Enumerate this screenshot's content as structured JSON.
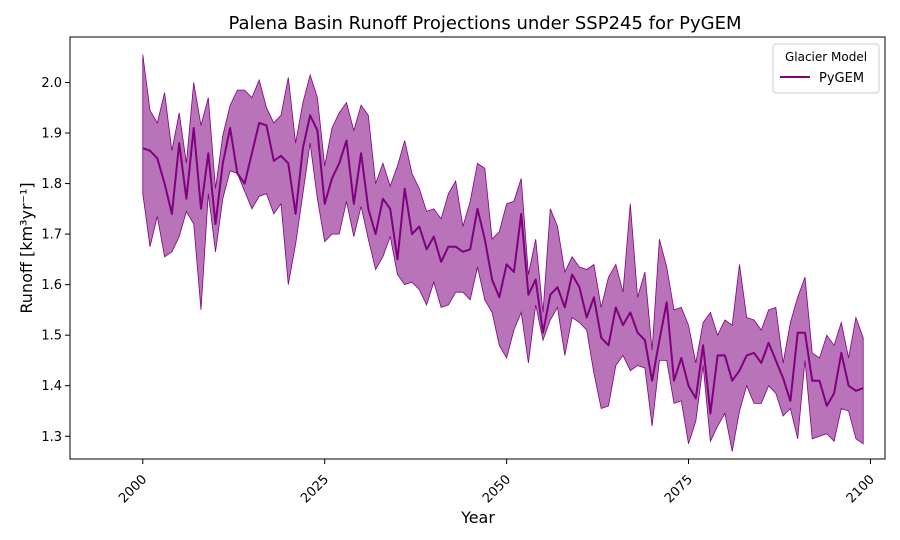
{
  "chart_data": {
    "type": "line",
    "title": "Palena Basin Runoff Projections under SSP245 for PyGEM",
    "xlabel": "Year",
    "ylabel": "Runoff [km³yr⁻¹]",
    "xlim": [
      1990,
      2102
    ],
    "ylim": [
      1.255,
      2.09
    ],
    "xticks": [
      2000,
      2025,
      2050,
      2075,
      2100
    ],
    "yticks": [
      1.3,
      1.4,
      1.5,
      1.6,
      1.7,
      1.8,
      1.9,
      2.0
    ],
    "grid": false,
    "legend": {
      "title": "Glacier Model",
      "placement": "top-right"
    },
    "series_color": "#800080",
    "x": [
      2000,
      2001,
      2002,
      2003,
      2004,
      2005,
      2006,
      2007,
      2008,
      2009,
      2010,
      2011,
      2012,
      2013,
      2014,
      2015,
      2016,
      2017,
      2018,
      2019,
      2020,
      2021,
      2022,
      2023,
      2024,
      2025,
      2026,
      2027,
      2028,
      2029,
      2030,
      2031,
      2032,
      2033,
      2034,
      2035,
      2036,
      2037,
      2038,
      2039,
      2040,
      2041,
      2042,
      2043,
      2044,
      2045,
      2046,
      2047,
      2048,
      2049,
      2050,
      2051,
      2052,
      2053,
      2054,
      2055,
      2056,
      2057,
      2058,
      2059,
      2060,
      2061,
      2062,
      2063,
      2064,
      2065,
      2066,
      2067,
      2068,
      2069,
      2070,
      2071,
      2072,
      2073,
      2074,
      2075,
      2076,
      2077,
      2078,
      2079,
      2080,
      2081,
      2082,
      2083,
      2084,
      2085,
      2086,
      2087,
      2088,
      2089,
      2090,
      2091,
      2092,
      2093,
      2094,
      2095,
      2096,
      2097,
      2098,
      2099
    ],
    "series": [
      {
        "name": "PyGEM",
        "values": [
          1.87,
          1.865,
          1.85,
          1.8,
          1.74,
          1.88,
          1.77,
          1.91,
          1.75,
          1.86,
          1.72,
          1.84,
          1.91,
          1.82,
          1.8,
          1.86,
          1.92,
          1.915,
          1.845,
          1.855,
          1.84,
          1.74,
          1.87,
          1.935,
          1.905,
          1.76,
          1.81,
          1.84,
          1.885,
          1.76,
          1.86,
          1.75,
          1.7,
          1.77,
          1.75,
          1.65,
          1.79,
          1.7,
          1.715,
          1.67,
          1.695,
          1.645,
          1.675,
          1.675,
          1.665,
          1.67,
          1.75,
          1.69,
          1.61,
          1.575,
          1.64,
          1.625,
          1.74,
          1.58,
          1.61,
          1.505,
          1.58,
          1.595,
          1.555,
          1.62,
          1.595,
          1.535,
          1.575,
          1.495,
          1.48,
          1.555,
          1.52,
          1.545,
          1.505,
          1.49,
          1.41,
          1.49,
          1.565,
          1.41,
          1.455,
          1.4,
          1.375,
          1.48,
          1.345,
          1.46,
          1.46,
          1.41,
          1.43,
          1.46,
          1.465,
          1.445,
          1.485,
          1.45,
          1.415,
          1.37,
          1.505,
          1.505,
          1.41,
          1.41,
          1.36,
          1.385,
          1.465,
          1.4,
          1.39,
          1.395
        ]
      }
    ],
    "band": {
      "upper": [
        2.055,
        1.945,
        1.92,
        1.98,
        1.865,
        1.94,
        1.84,
        2.0,
        1.915,
        1.97,
        1.79,
        1.895,
        1.955,
        1.985,
        1.985,
        1.97,
        2.005,
        1.95,
        1.92,
        1.935,
        2.01,
        1.88,
        1.96,
        2.015,
        1.97,
        1.835,
        1.91,
        1.94,
        1.96,
        1.905,
        1.955,
        1.935,
        1.8,
        1.84,
        1.795,
        1.835,
        1.885,
        1.82,
        1.79,
        1.745,
        1.75,
        1.73,
        1.78,
        1.805,
        1.715,
        1.765,
        1.84,
        1.83,
        1.69,
        1.705,
        1.76,
        1.765,
        1.81,
        1.62,
        1.69,
        1.545,
        1.75,
        1.715,
        1.625,
        1.655,
        1.635,
        1.63,
        1.64,
        1.555,
        1.615,
        1.64,
        1.585,
        1.76,
        1.575,
        1.625,
        1.47,
        1.69,
        1.635,
        1.55,
        1.555,
        1.52,
        1.445,
        1.525,
        1.545,
        1.5,
        1.53,
        1.52,
        1.64,
        1.535,
        1.53,
        1.51,
        1.55,
        1.555,
        1.445,
        1.525,
        1.575,
        1.615,
        1.465,
        1.455,
        1.5,
        1.48,
        1.525,
        1.455,
        1.535,
        1.495
      ],
      "lower": [
        1.78,
        1.675,
        1.735,
        1.655,
        1.665,
        1.695,
        1.745,
        1.72,
        1.55,
        1.78,
        1.665,
        1.77,
        1.825,
        1.82,
        1.785,
        1.75,
        1.775,
        1.78,
        1.74,
        1.76,
        1.6,
        1.68,
        1.78,
        1.88,
        1.77,
        1.685,
        1.7,
        1.7,
        1.765,
        1.695,
        1.755,
        1.69,
        1.63,
        1.655,
        1.695,
        1.62,
        1.6,
        1.605,
        1.59,
        1.56,
        1.605,
        1.555,
        1.56,
        1.585,
        1.585,
        1.57,
        1.635,
        1.57,
        1.545,
        1.48,
        1.455,
        1.51,
        1.545,
        1.445,
        1.56,
        1.49,
        1.53,
        1.555,
        1.46,
        1.535,
        1.525,
        1.51,
        1.425,
        1.355,
        1.36,
        1.44,
        1.46,
        1.43,
        1.44,
        1.435,
        1.32,
        1.45,
        1.45,
        1.365,
        1.37,
        1.285,
        1.33,
        1.44,
        1.29,
        1.32,
        1.345,
        1.27,
        1.35,
        1.4,
        1.365,
        1.365,
        1.4,
        1.385,
        1.34,
        1.355,
        1.295,
        1.45,
        1.295,
        1.3,
        1.305,
        1.29,
        1.355,
        1.35,
        1.295,
        1.285
      ]
    }
  }
}
